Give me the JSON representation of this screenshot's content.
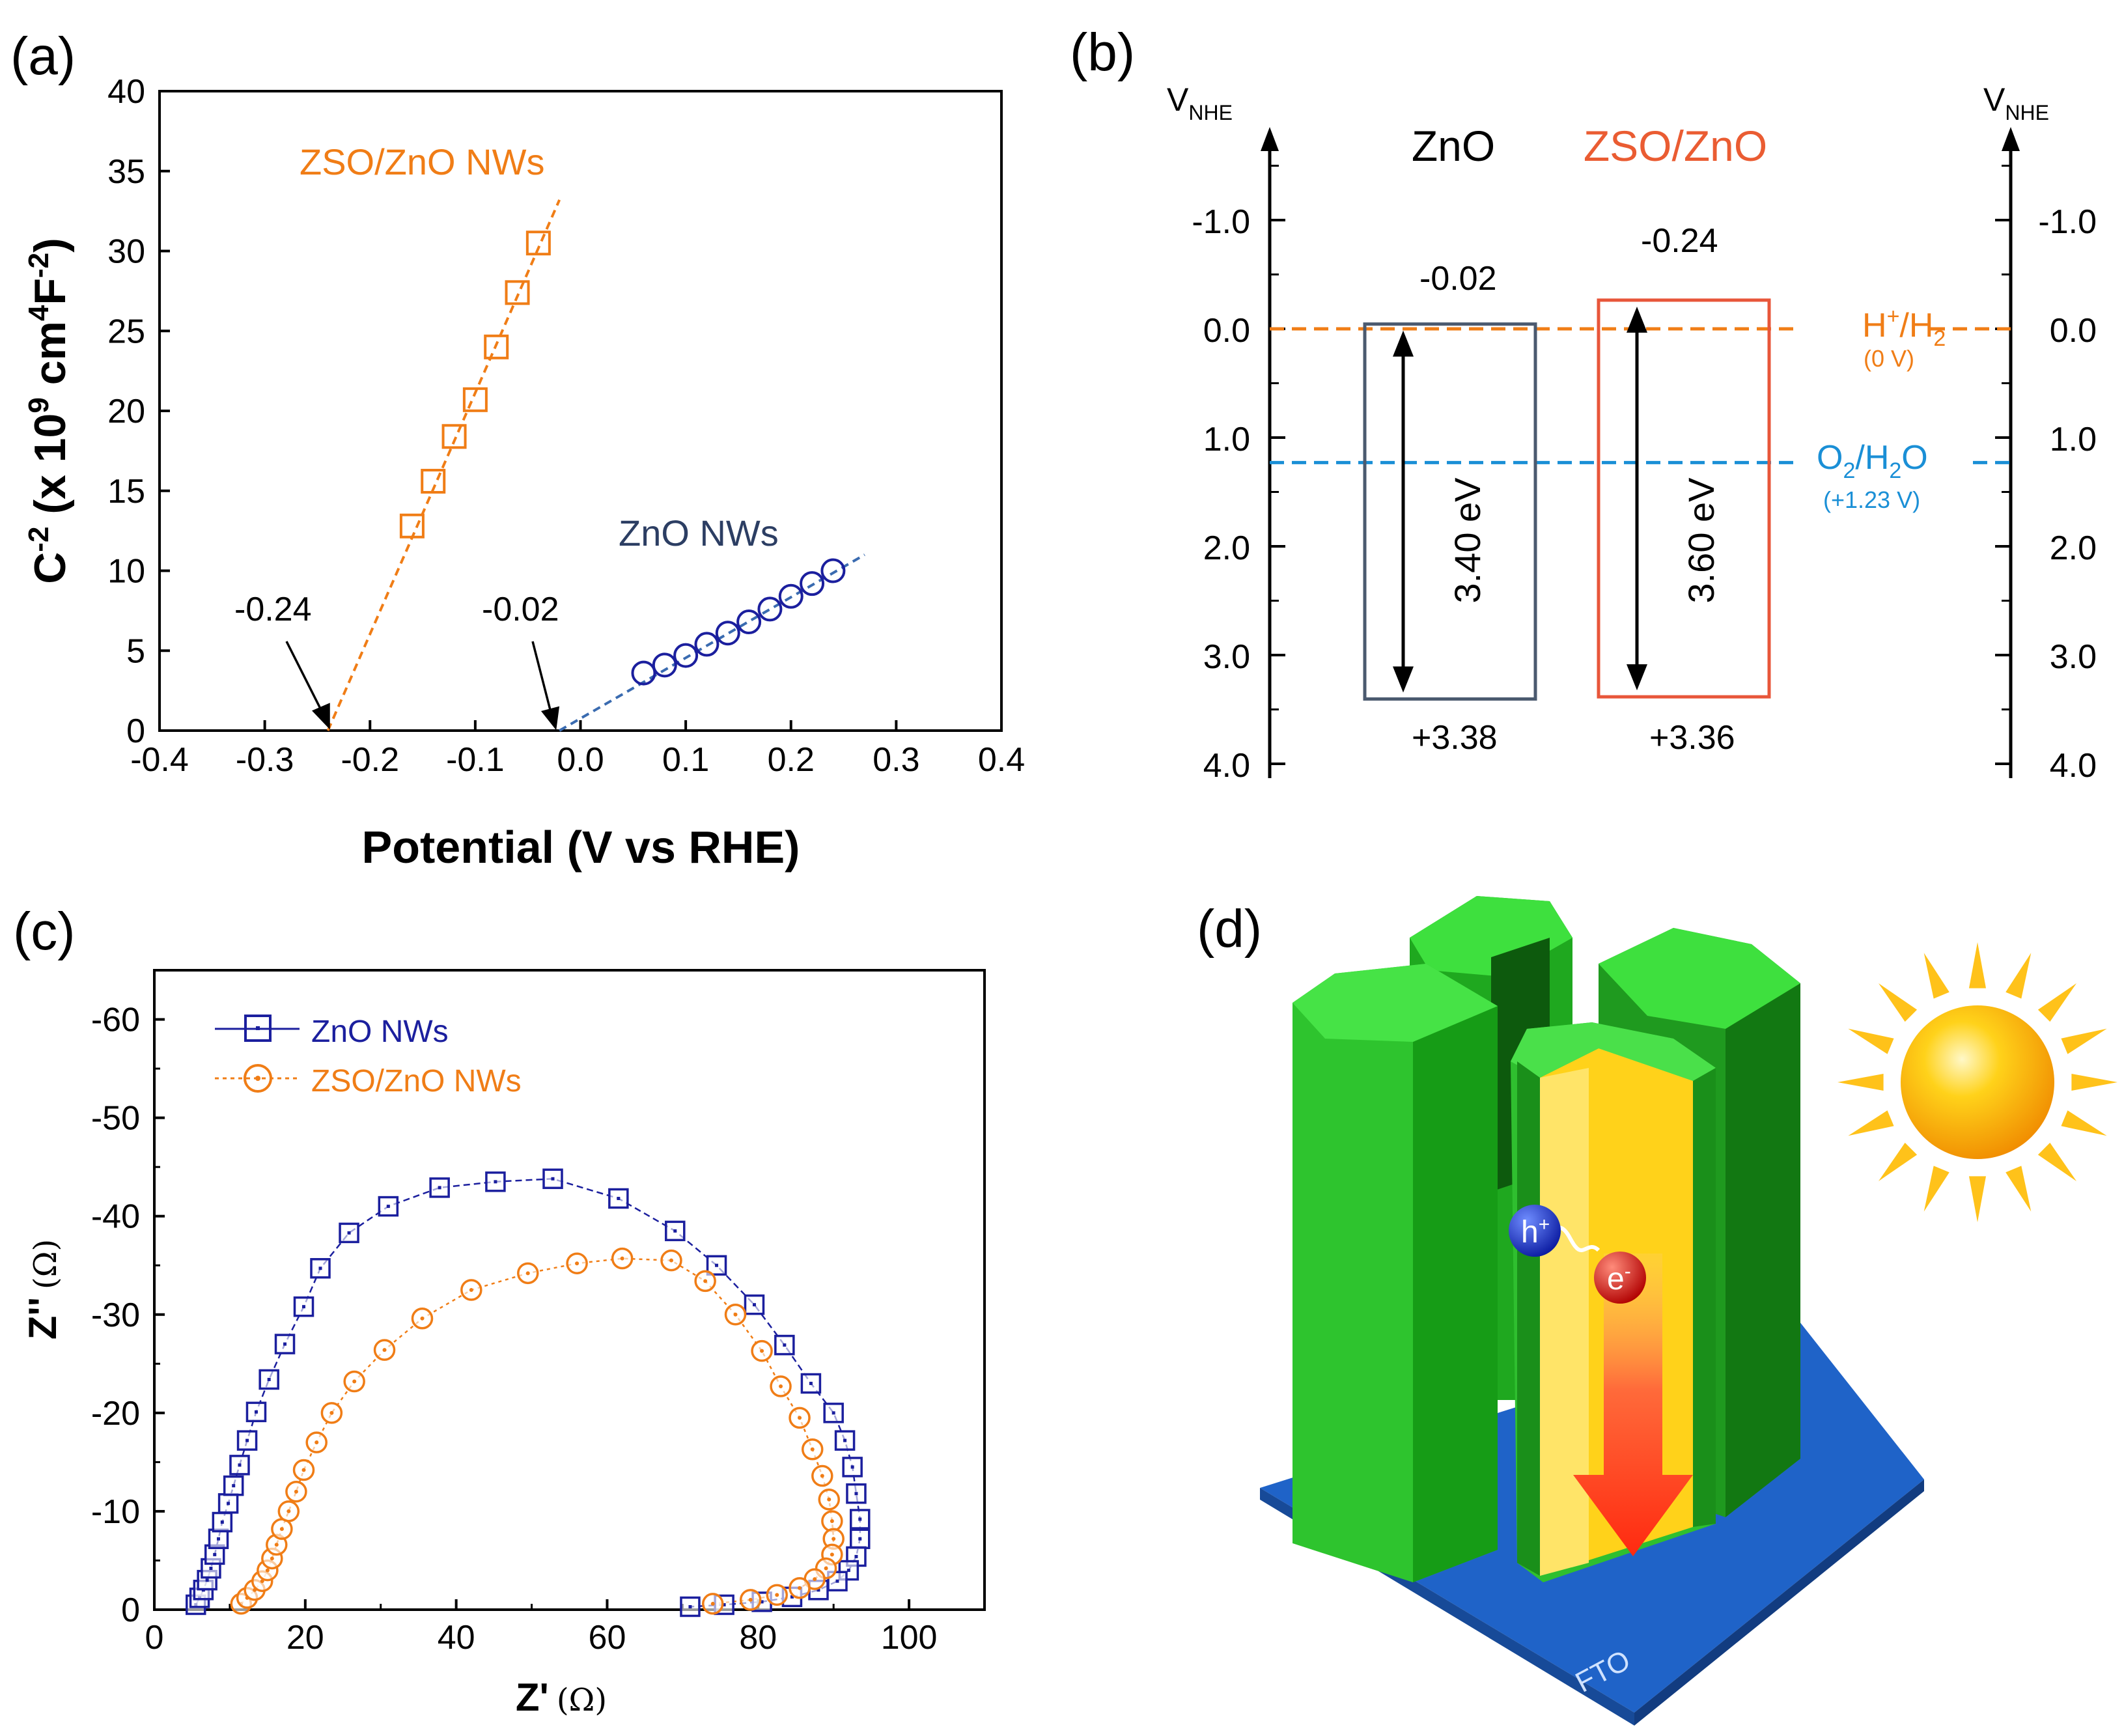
{
  "colors": {
    "orange": "#f07d16",
    "zno_blue": "#1b1f9e",
    "slate": "#2c3e63",
    "cyan": "#1a8fd6",
    "zso_box": "#e8563a",
    "box_gray": "#4b5a6f",
    "green": "#2ecc2e",
    "blue_base": "#1f63c8",
    "yellow": "#f5b800"
  },
  "chart_data": [
    {
      "panel": "(a)",
      "type": "scatter",
      "xlabel": "Potential (V vs RHE)",
      "ylabel": "C-2 (x 109 cm4F-2)",
      "ylabel_parts": [
        "C",
        "-2",
        " (x 10",
        "9",
        " cm",
        "4",
        "F",
        "-2",
        ")"
      ],
      "xlim": [
        -0.4,
        0.4
      ],
      "ylim": [
        0,
        40
      ],
      "xticks": [
        "-0.4",
        "-0.3",
        "-0.2",
        "-0.1",
        "0.0",
        "0.1",
        "0.2",
        "0.3",
        "0.4"
      ],
      "yticks": [
        "0",
        "5",
        "10",
        "15",
        "20",
        "25",
        "30",
        "35",
        "40"
      ],
      "series": [
        {
          "name": "ZSO/ZnO NWs",
          "marker": "square",
          "x": [
            -0.16,
            -0.14,
            -0.12,
            -0.1,
            -0.08,
            -0.06,
            -0.04
          ],
          "y": [
            12.8,
            15.6,
            18.4,
            20.7,
            24.0,
            27.4,
            30.5
          ],
          "fit_line": {
            "x": [
              -0.24,
              -0.02
            ],
            "y": [
              0,
              33.2
            ]
          }
        },
        {
          "name": "ZnO NWs",
          "marker": "circle",
          "x": [
            0.06,
            0.08,
            0.1,
            0.12,
            0.14,
            0.16,
            0.18,
            0.2,
            0.22,
            0.24
          ],
          "y": [
            3.6,
            4.1,
            4.7,
            5.4,
            6.1,
            6.8,
            7.6,
            8.4,
            9.2,
            10.0
          ],
          "fit_line": {
            "x": [
              -0.02,
              0.27
            ],
            "y": [
              0,
              11.0
            ]
          }
        }
      ],
      "annotations": [
        {
          "text": "-0.24",
          "x": -0.24
        },
        {
          "text": "-0.02",
          "x": -0.02
        }
      ]
    },
    {
      "panel": "(b)",
      "type": "band-diagram",
      "axis_label": "V",
      "axis_label_sub": "NHE",
      "ylim": [
        -2.0,
        4.0
      ],
      "yticks": [
        "-1.0",
        "0.0",
        "1.0",
        "2.0",
        "3.0",
        "4.0"
      ],
      "materials": [
        {
          "name": "ZnO",
          "cb": -0.02,
          "vb": 3.38,
          "cb_label": "-0.02",
          "vb_label": "+3.38",
          "gap_label": "3.40 eV"
        },
        {
          "name": "ZSO/ZnO",
          "cb": -0.24,
          "vb": 3.36,
          "cb_label": "-0.24",
          "vb_label": "+3.36",
          "gap_label": "3.60 eV"
        }
      ],
      "levels": [
        {
          "label": "H+/H2",
          "label_parts": [
            "H",
            "+",
            "/H",
            "2"
          ],
          "sublabel": "(0 V)",
          "value": 0.0
        },
        {
          "label": "O2/H2O",
          "label_parts": [
            "O",
            "2",
            "/H",
            "2",
            "O"
          ],
          "sublabel": "(+1.23 V)",
          "value": 1.23
        }
      ]
    },
    {
      "panel": "(c)",
      "type": "scatter",
      "xlabel": "Z'",
      "xlabel_unit": "(Ω)",
      "ylabel": "Z''",
      "ylabel_unit": "(Ω)",
      "xlim": [
        0,
        110
      ],
      "ylim": [
        0,
        -65
      ],
      "xticks": [
        "0",
        "20",
        "40",
        "60",
        "80",
        "100"
      ],
      "yticks": [
        "0",
        "-10",
        "-20",
        "-30",
        "-40",
        "-50",
        "-60"
      ],
      "series": [
        {
          "name": "ZnO NWs",
          "marker": "square",
          "x": [
            5.5,
            6.0,
            6.5,
            7.0,
            7.5,
            8.0,
            8.5,
            9.0,
            9.8,
            10.5,
            11.3,
            12.3,
            13.5,
            15.2,
            17.3,
            19.8,
            22.0,
            25.8,
            31.0,
            37.8,
            45.2,
            52.8,
            61.5,
            69.0,
            74.5,
            79.5,
            83.5,
            87.0,
            90.0,
            91.5,
            92.5,
            93.0,
            93.5,
            93.5,
            93.0,
            92.0,
            90.5,
            88.0,
            84.5,
            80.5,
            75.5,
            71.0
          ],
          "y": [
            -0.5,
            -1.2,
            -2.0,
            -3.0,
            -4.2,
            -5.6,
            -7.2,
            -8.9,
            -10.8,
            -12.6,
            -14.7,
            -17.2,
            -20.1,
            -23.4,
            -27.0,
            -30.8,
            -34.7,
            -38.3,
            -41.0,
            -42.9,
            -43.5,
            -43.8,
            -41.8,
            -38.5,
            -35.0,
            -31.0,
            -26.9,
            -23.0,
            -20.0,
            -17.2,
            -14.5,
            -11.8,
            -9.2,
            -7.2,
            -5.4,
            -4.0,
            -2.9,
            -2.0,
            -1.3,
            -0.8,
            -0.5,
            -0.3
          ]
        },
        {
          "name": "ZSO/ZnO NWs",
          "marker": "circle",
          "x": [
            11.5,
            12.3,
            13.3,
            14.3,
            15.0,
            15.6,
            16.2,
            16.9,
            17.8,
            18.8,
            19.8,
            21.5,
            23.5,
            26.5,
            30.5,
            35.5,
            42.0,
            49.5,
            56.0,
            62.0,
            68.5,
            73.0,
            77.0,
            80.5,
            83.0,
            85.5,
            87.2,
            88.5,
            89.4,
            89.8,
            90.0,
            89.8,
            89.0,
            87.5,
            85.5,
            82.5,
            79.0,
            74.0
          ],
          "y": [
            -0.6,
            -1.2,
            -2.0,
            -2.9,
            -4.0,
            -5.2,
            -6.6,
            -8.2,
            -10.0,
            -12.0,
            -14.2,
            -17.0,
            -20.0,
            -23.2,
            -26.4,
            -29.6,
            -32.5,
            -34.2,
            -35.2,
            -35.7,
            -35.5,
            -33.4,
            -30.0,
            -26.3,
            -22.7,
            -19.5,
            -16.3,
            -13.6,
            -11.2,
            -9.0,
            -7.2,
            -5.6,
            -4.2,
            -3.1,
            -2.2,
            -1.5,
            -1.0,
            -0.6
          ]
        }
      ],
      "legend_position": "top-left"
    }
  ],
  "panels": {
    "a": {
      "label": "(a)",
      "zso_label": "ZSO/ZnO NWs",
      "zno_label": "ZnO NWs"
    },
    "b": {
      "label": "(b)"
    },
    "c": {
      "label": "(c)"
    },
    "d": {
      "label": "(d)",
      "hole": "h",
      "hole_sup": "+",
      "electron": "e",
      "electron_sup": "-",
      "substrate": "FTO",
      "sun": "sun-icon"
    }
  }
}
